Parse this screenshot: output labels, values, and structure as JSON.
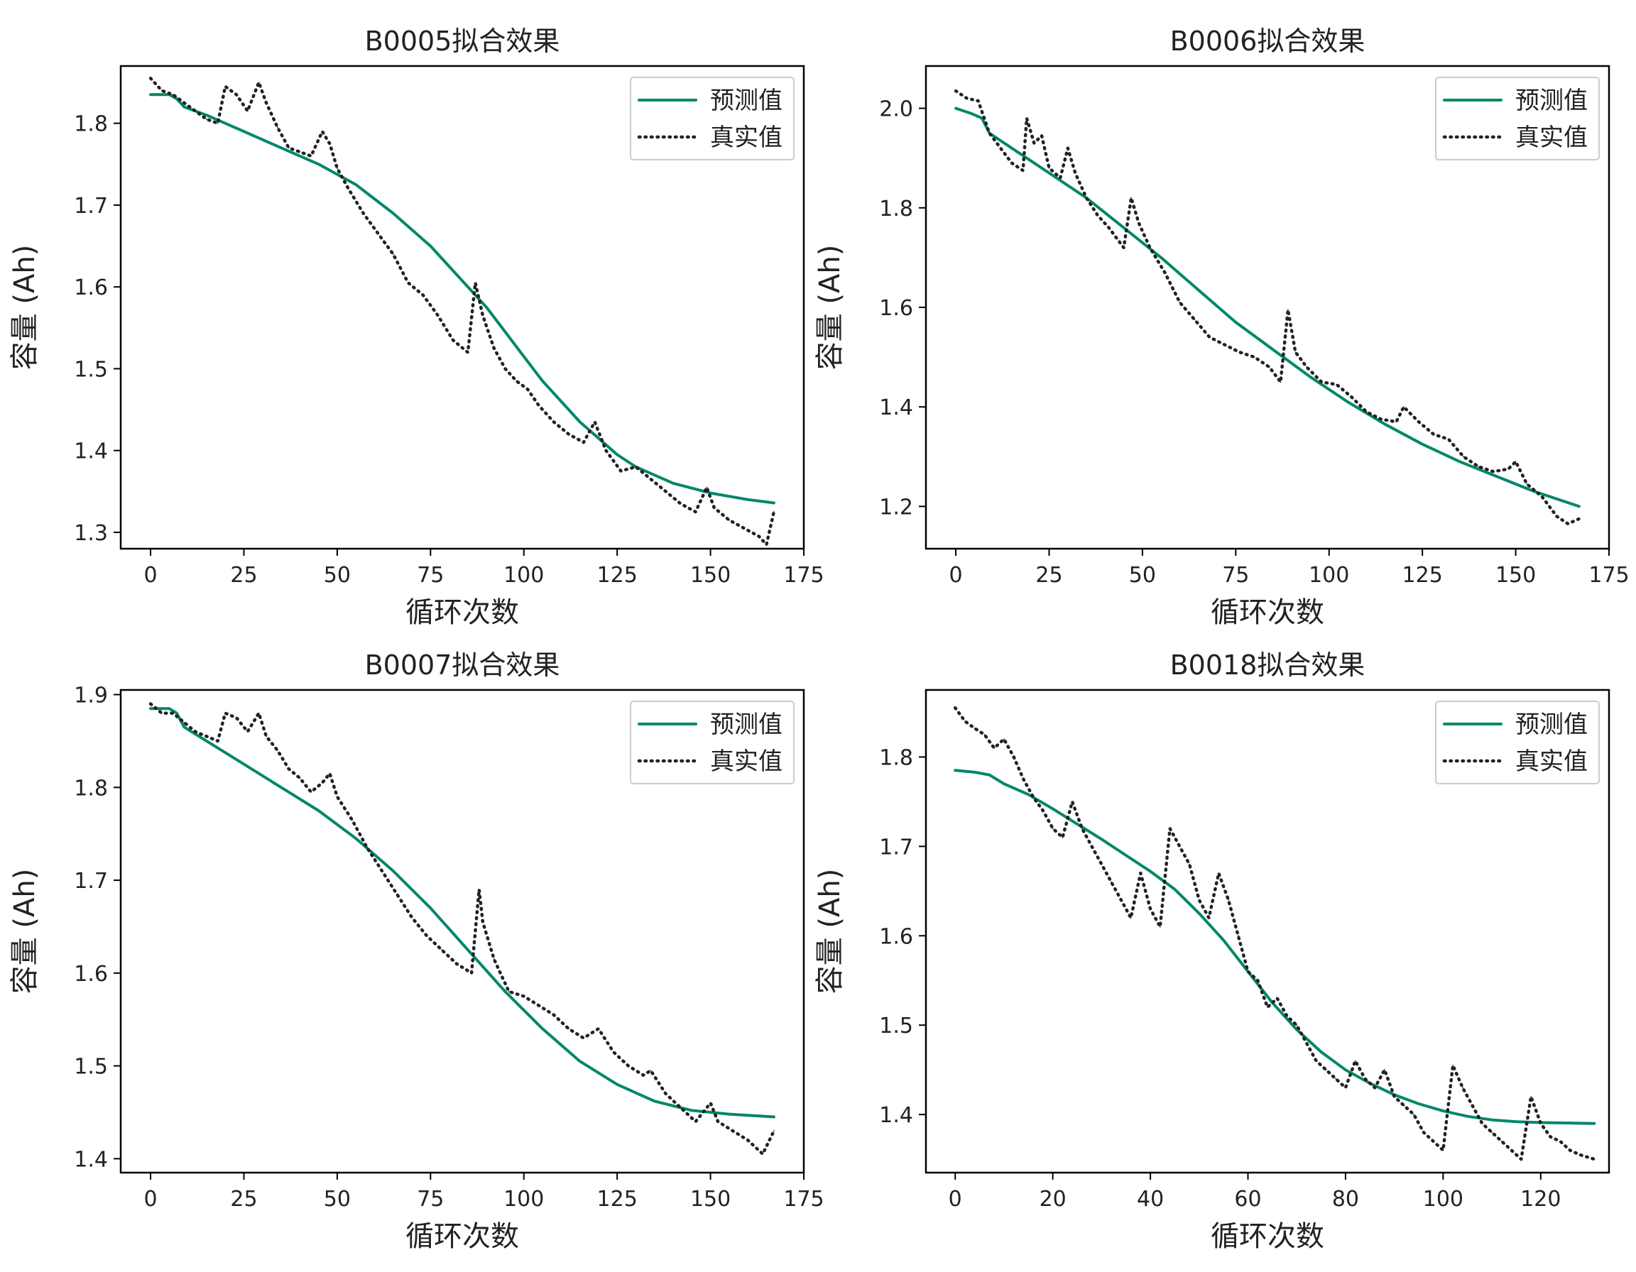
{
  "colors": {
    "predicted": "#00876a",
    "actual": "#222222",
    "frame": "#000000",
    "legend_border": "#cccccc"
  },
  "chart_data": [
    {
      "type": "line",
      "title": "B0005拟合效果",
      "xlabel": "循环次数",
      "ylabel": "容量 (Ah)",
      "xlim": [
        -8,
        175
      ],
      "ylim": [
        1.28,
        1.87
      ],
      "xticks": [
        0,
        25,
        50,
        75,
        100,
        125,
        150,
        175
      ],
      "yticks": [
        1.3,
        1.4,
        1.5,
        1.6,
        1.7,
        1.8
      ],
      "legend_position": "top-right",
      "grid": false,
      "series": [
        {
          "name": "预测值",
          "style": "solid",
          "x": [
            0,
            5,
            7,
            9,
            15,
            25,
            35,
            45,
            55,
            65,
            75,
            85,
            90,
            95,
            100,
            105,
            110,
            115,
            120,
            125,
            130,
            140,
            150,
            160,
            167
          ],
          "y": [
            1.835,
            1.835,
            1.83,
            1.82,
            1.81,
            1.79,
            1.77,
            1.75,
            1.725,
            1.69,
            1.65,
            1.6,
            1.575,
            1.545,
            1.515,
            1.485,
            1.46,
            1.435,
            1.415,
            1.395,
            1.38,
            1.36,
            1.348,
            1.34,
            1.336
          ]
        },
        {
          "name": "真实值",
          "style": "dotted",
          "x": [
            0,
            3,
            6,
            9,
            12,
            15,
            18,
            20,
            23,
            26,
            29,
            31,
            34,
            37,
            40,
            43,
            46,
            48,
            50,
            53,
            57,
            61,
            65,
            69,
            73,
            77,
            81,
            85,
            87,
            89,
            92,
            95,
            98,
            101,
            104,
            108,
            112,
            116,
            119,
            122,
            126,
            130,
            134,
            138,
            142,
            146,
            149,
            151,
            155,
            159,
            163,
            165,
            167
          ],
          "y": [
            1.855,
            1.84,
            1.835,
            1.825,
            1.815,
            1.805,
            1.8,
            1.845,
            1.835,
            1.815,
            1.85,
            1.825,
            1.795,
            1.77,
            1.765,
            1.76,
            1.79,
            1.775,
            1.745,
            1.72,
            1.69,
            1.665,
            1.64,
            1.605,
            1.59,
            1.565,
            1.535,
            1.52,
            1.605,
            1.565,
            1.525,
            1.5,
            1.485,
            1.475,
            1.455,
            1.435,
            1.42,
            1.41,
            1.435,
            1.4,
            1.375,
            1.38,
            1.365,
            1.35,
            1.335,
            1.325,
            1.355,
            1.33,
            1.315,
            1.305,
            1.295,
            1.285,
            1.325
          ]
        }
      ]
    },
    {
      "type": "line",
      "title": "B0006拟合效果",
      "xlabel": "循环次数",
      "ylabel": "容量 (Ah)",
      "xlim": [
        -8,
        175
      ],
      "ylim": [
        1.115,
        2.085
      ],
      "xticks": [
        0,
        25,
        50,
        75,
        100,
        125,
        150,
        175
      ],
      "yticks": [
        1.2,
        1.4,
        1.6,
        1.8,
        2.0
      ],
      "legend_position": "top-right",
      "grid": false,
      "series": [
        {
          "name": "预测值",
          "style": "solid",
          "x": [
            0,
            4,
            7,
            9,
            15,
            25,
            35,
            45,
            55,
            65,
            75,
            85,
            95,
            105,
            115,
            125,
            135,
            145,
            155,
            167
          ],
          "y": [
            2.0,
            1.99,
            1.98,
            1.95,
            1.92,
            1.87,
            1.82,
            1.76,
            1.7,
            1.635,
            1.57,
            1.515,
            1.46,
            1.41,
            1.365,
            1.325,
            1.29,
            1.26,
            1.23,
            1.2
          ]
        },
        {
          "name": "真实值",
          "style": "dotted",
          "x": [
            0,
            3,
            6,
            9,
            12,
            15,
            18,
            19,
            21,
            23,
            25,
            28,
            30,
            32,
            35,
            38,
            41,
            43,
            45,
            47,
            49,
            52,
            56,
            60,
            64,
            68,
            72,
            76,
            80,
            84,
            87,
            89,
            91,
            94,
            98,
            102,
            106,
            110,
            114,
            118,
            120,
            124,
            128,
            132,
            136,
            140,
            144,
            148,
            150,
            153,
            157,
            161,
            164,
            167
          ],
          "y": [
            2.035,
            2.02,
            2.015,
            1.95,
            1.92,
            1.89,
            1.875,
            1.98,
            1.93,
            1.945,
            1.88,
            1.86,
            1.92,
            1.87,
            1.82,
            1.785,
            1.76,
            1.74,
            1.72,
            1.82,
            1.77,
            1.72,
            1.67,
            1.61,
            1.575,
            1.54,
            1.525,
            1.51,
            1.5,
            1.48,
            1.45,
            1.595,
            1.51,
            1.48,
            1.45,
            1.445,
            1.42,
            1.39,
            1.375,
            1.37,
            1.4,
            1.37,
            1.345,
            1.335,
            1.3,
            1.28,
            1.27,
            1.275,
            1.29,
            1.245,
            1.22,
            1.18,
            1.165,
            1.175
          ]
        }
      ]
    },
    {
      "type": "line",
      "title": "B0007拟合效果",
      "xlabel": "循环次数",
      "ylabel": "容量 (Ah)",
      "xlim": [
        -8,
        175
      ],
      "ylim": [
        1.385,
        1.905
      ],
      "xticks": [
        0,
        25,
        50,
        75,
        100,
        125,
        150,
        175
      ],
      "yticks": [
        1.4,
        1.5,
        1.6,
        1.7,
        1.8,
        1.9
      ],
      "legend_position": "top-right",
      "grid": false,
      "series": [
        {
          "name": "预测值",
          "style": "solid",
          "x": [
            0,
            5,
            7,
            9,
            15,
            25,
            35,
            45,
            55,
            65,
            75,
            85,
            95,
            105,
            115,
            125,
            135,
            145,
            155,
            167
          ],
          "y": [
            1.885,
            1.885,
            1.88,
            1.865,
            1.85,
            1.825,
            1.8,
            1.775,
            1.745,
            1.71,
            1.67,
            1.625,
            1.58,
            1.54,
            1.505,
            1.48,
            1.462,
            1.452,
            1.448,
            1.445
          ]
        },
        {
          "name": "真实值",
          "style": "dotted",
          "x": [
            0,
            3,
            6,
            9,
            12,
            15,
            18,
            20,
            23,
            26,
            29,
            31,
            34,
            37,
            40,
            43,
            46,
            48,
            50,
            54,
            58,
            62,
            66,
            70,
            74,
            78,
            82,
            86,
            88,
            89,
            92,
            96,
            100,
            104,
            108,
            112,
            116,
            120,
            124,
            128,
            132,
            134,
            138,
            142,
            146,
            150,
            152,
            156,
            160,
            164,
            167
          ],
          "y": [
            1.89,
            1.88,
            1.88,
            1.87,
            1.86,
            1.855,
            1.85,
            1.88,
            1.875,
            1.86,
            1.88,
            1.855,
            1.84,
            1.82,
            1.81,
            1.795,
            1.805,
            1.815,
            1.79,
            1.765,
            1.735,
            1.71,
            1.685,
            1.66,
            1.64,
            1.625,
            1.61,
            1.6,
            1.69,
            1.655,
            1.615,
            1.58,
            1.575,
            1.565,
            1.555,
            1.54,
            1.53,
            1.54,
            1.515,
            1.5,
            1.49,
            1.495,
            1.47,
            1.455,
            1.44,
            1.46,
            1.44,
            1.43,
            1.42,
            1.405,
            1.43
          ]
        }
      ]
    },
    {
      "type": "line",
      "title": "B0018拟合效果",
      "xlabel": "循环次数",
      "ylabel": "容量 (Ah)",
      "xlim": [
        -6,
        134
      ],
      "ylim": [
        1.335,
        1.875
      ],
      "xticks": [
        0,
        20,
        40,
        60,
        80,
        100,
        120
      ],
      "yticks": [
        1.4,
        1.5,
        1.6,
        1.7,
        1.8
      ],
      "legend_position": "top-right",
      "grid": false,
      "series": [
        {
          "name": "预测值",
          "style": "solid",
          "x": [
            0,
            4,
            7,
            10,
            15,
            20,
            25,
            30,
            35,
            40,
            45,
            50,
            55,
            60,
            65,
            70,
            75,
            80,
            85,
            90,
            95,
            100,
            105,
            110,
            115,
            120,
            131
          ],
          "y": [
            1.785,
            1.783,
            1.78,
            1.77,
            1.758,
            1.742,
            1.725,
            1.708,
            1.69,
            1.672,
            1.652,
            1.625,
            1.595,
            1.56,
            1.525,
            1.495,
            1.47,
            1.45,
            1.435,
            1.422,
            1.412,
            1.404,
            1.398,
            1.394,
            1.392,
            1.391,
            1.39
          ]
        },
        {
          "name": "真实值",
          "style": "dotted",
          "x": [
            0,
            2,
            4,
            6,
            8,
            10,
            12,
            14,
            16,
            18,
            20,
            22,
            24,
            26,
            28,
            30,
            32,
            34,
            36,
            38,
            40,
            42,
            44,
            46,
            48,
            50,
            52,
            54,
            56,
            58,
            60,
            62,
            64,
            66,
            68,
            70,
            72,
            74,
            76,
            78,
            80,
            82,
            84,
            86,
            88,
            90,
            92,
            94,
            96,
            98,
            100,
            102,
            104,
            106,
            108,
            110,
            112,
            114,
            116,
            118,
            120,
            122,
            124,
            126,
            128,
            131
          ],
          "y": [
            1.855,
            1.84,
            1.832,
            1.825,
            1.81,
            1.82,
            1.8,
            1.775,
            1.755,
            1.74,
            1.72,
            1.71,
            1.75,
            1.72,
            1.7,
            1.68,
            1.66,
            1.64,
            1.62,
            1.67,
            1.63,
            1.61,
            1.72,
            1.7,
            1.68,
            1.64,
            1.62,
            1.67,
            1.64,
            1.6,
            1.56,
            1.55,
            1.52,
            1.53,
            1.51,
            1.5,
            1.48,
            1.46,
            1.45,
            1.44,
            1.43,
            1.46,
            1.44,
            1.43,
            1.45,
            1.42,
            1.41,
            1.4,
            1.38,
            1.37,
            1.36,
            1.455,
            1.43,
            1.41,
            1.39,
            1.38,
            1.37,
            1.36,
            1.35,
            1.42,
            1.39,
            1.375,
            1.37,
            1.36,
            1.355,
            1.35
          ]
        }
      ]
    }
  ]
}
